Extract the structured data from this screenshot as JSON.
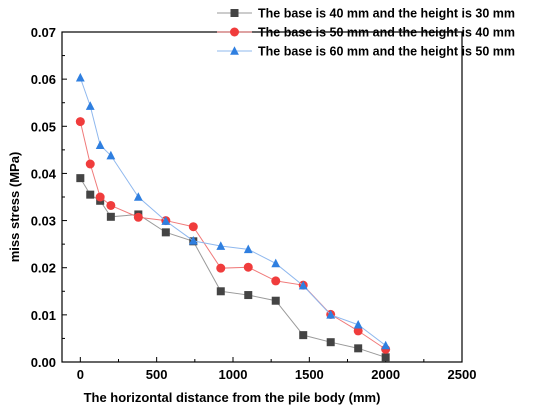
{
  "chart_data": {
    "type": "line",
    "title": "",
    "xlabel": "The horizontal distance from the pile body (mm)",
    "ylabel": "miss stress (MPa)",
    "xlim": [
      -120,
      2500
    ],
    "ylim": [
      0,
      0.07
    ],
    "xticks": [
      0,
      500,
      1000,
      1500,
      2000,
      2500
    ],
    "yticks": [
      "0.00",
      "0.01",
      "0.02",
      "0.03",
      "0.04",
      "0.05",
      "0.06",
      "0.07"
    ],
    "grid": false,
    "legend_position": "top-right",
    "series": [
      {
        "name": "The base is 40 mm and the height is 30 mm",
        "color": "#444444",
        "marker": "square",
        "line_color": "#9a9a9a",
        "x": [
          0,
          65,
          130,
          200,
          380,
          560,
          740,
          920,
          1100,
          1280,
          1460,
          1640,
          1820,
          2000
        ],
        "y": [
          0.039,
          0.0355,
          0.0342,
          0.0308,
          0.0313,
          0.0275,
          0.0256,
          0.015,
          0.0142,
          0.013,
          0.0057,
          0.0042,
          0.0029,
          0.001
        ]
      },
      {
        "name": "The base is 50 mm and the height is 40 mm",
        "color": "#f03c3c",
        "marker": "circle",
        "line_color": "#f07a7a",
        "x": [
          0,
          65,
          130,
          200,
          380,
          560,
          740,
          920,
          1100,
          1280,
          1460,
          1640,
          1820,
          2000
        ],
        "y": [
          0.051,
          0.042,
          0.035,
          0.0332,
          0.0307,
          0.03,
          0.0287,
          0.0199,
          0.0201,
          0.0172,
          0.0163,
          0.0101,
          0.0066,
          0.0027
        ]
      },
      {
        "name": "The base is 60 mm and the height is 50 mm",
        "color": "#2f7fe0",
        "marker": "triangle",
        "line_color": "#8fb8ee",
        "x": [
          0,
          65,
          130,
          200,
          380,
          560,
          740,
          920,
          1100,
          1280,
          1460,
          1640,
          1820,
          2000
        ],
        "y": [
          0.0603,
          0.0543,
          0.046,
          0.0438,
          0.035,
          0.0299,
          0.0257,
          0.0246,
          0.0239,
          0.0209,
          0.0162,
          0.01,
          0.0079,
          0.0035
        ]
      }
    ]
  }
}
